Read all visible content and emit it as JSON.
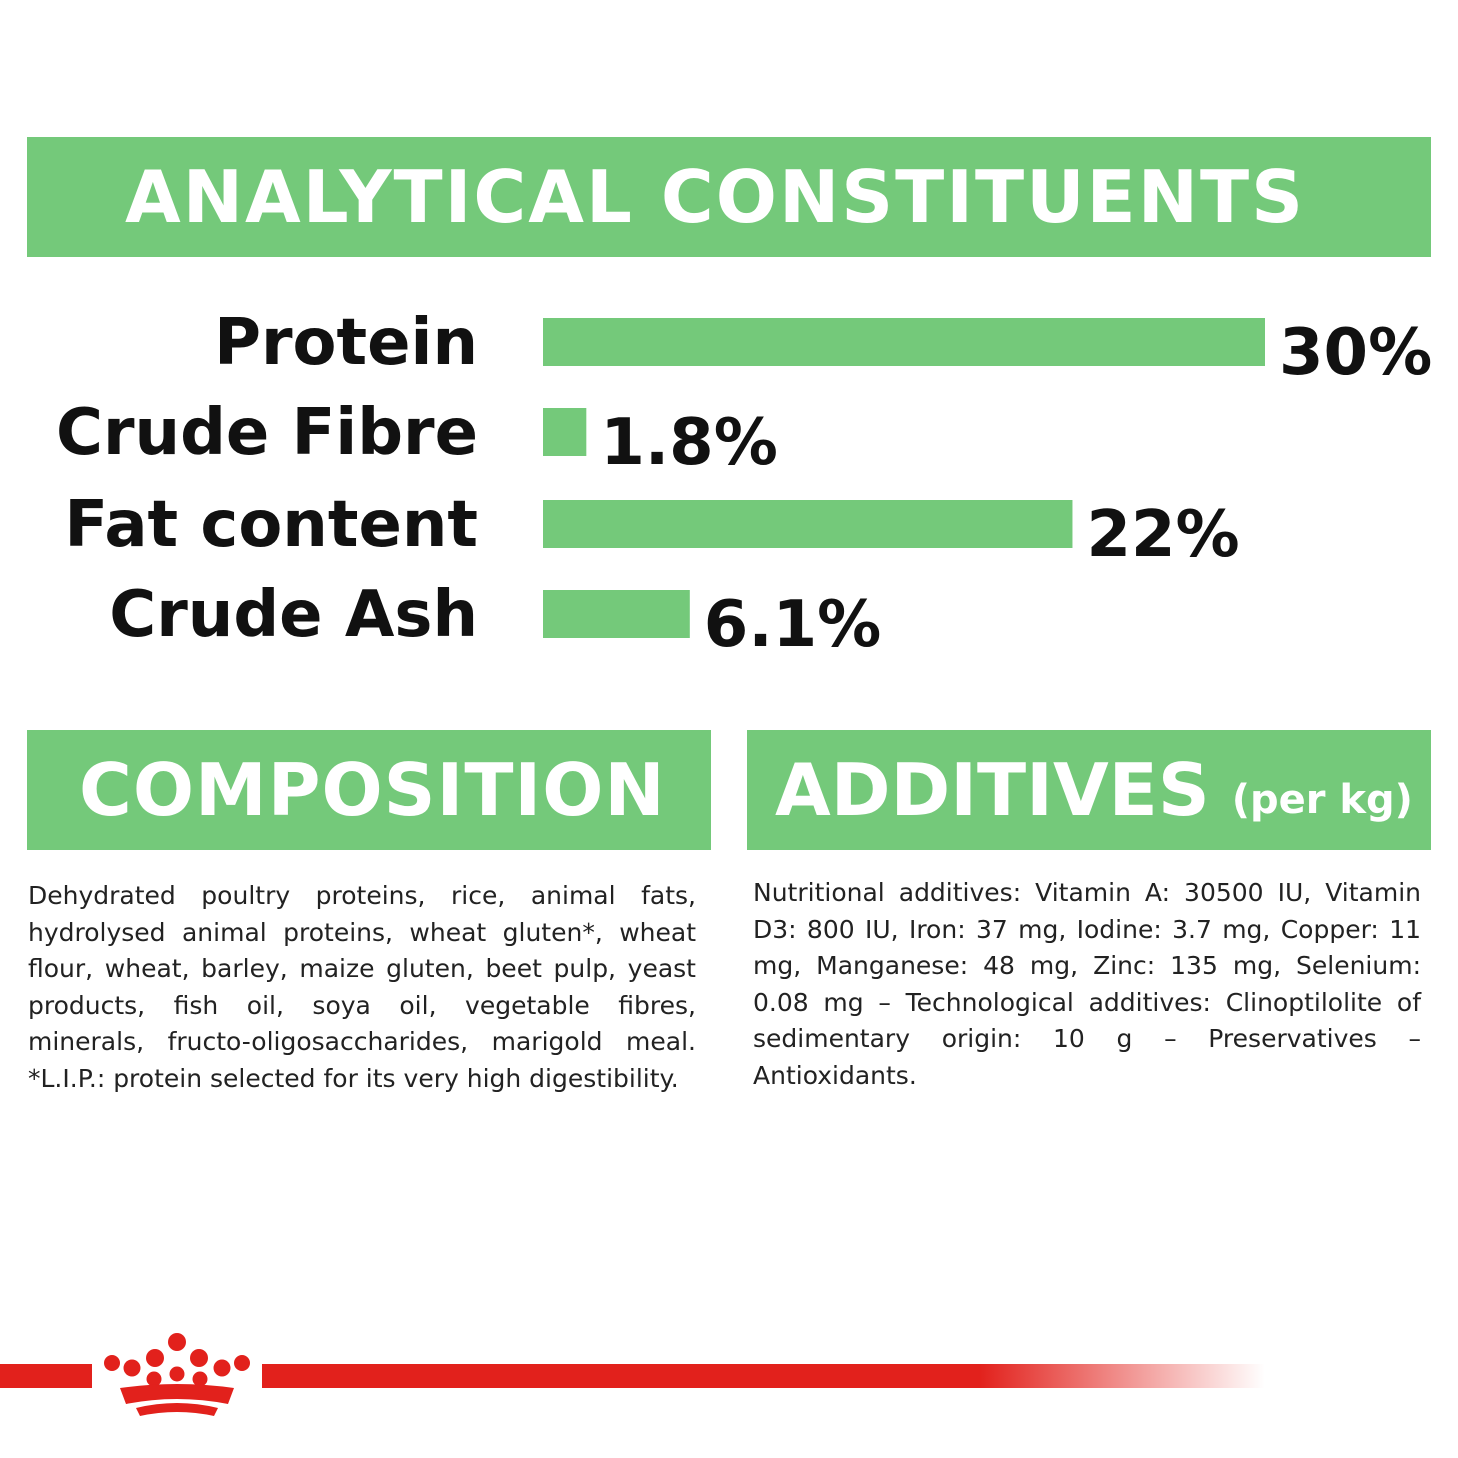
{
  "sections": {
    "analytical_title": "ANALYTICAL CONSTITUENTS",
    "composition_title": "COMPOSITION",
    "additives_title": "ADDITIVES",
    "additives_suffix": "(per kg)"
  },
  "colors": {
    "accent_green": "#74c97a",
    "brand_red": "#e2211c",
    "text": "#111111"
  },
  "chart_data": {
    "type": "bar",
    "orientation": "horizontal",
    "categories": [
      "Protein",
      "Crude Fibre",
      "Fat content",
      "Crude Ash"
    ],
    "values": [
      30,
      1.8,
      22,
      6.1
    ],
    "value_labels": [
      "30%",
      "1.8%",
      "22%",
      "6.1%"
    ],
    "unit": "%",
    "grid": false
  },
  "composition": {
    "text": "Dehydrated poultry proteins, rice, animal fats, hydrolysed animal proteins, wheat gluten*, wheat flour, wheat, barley, maize gluten, beet pulp, yeast products, fish oil, soya oil, vegetable fibres, minerals, fructo-oligosaccharides, marigold meal. *L.I.P.: protein selected for its very high digestibility."
  },
  "additives": {
    "text": "Nutritional additives: Vitamin A: 30500 IU, Vitamin D3: 800 IU, Iron: 37 mg, Iodine: 3.7 mg, Copper: 11 mg, Manganese: 48 mg, Zinc: 135 mg, Selenium: 0.08 mg – Technological additives: Clinoptilolite of sedimentary origin: 10 g – Preservatives – Antioxidants."
  },
  "logo": {
    "icon": "crown-logo-icon"
  }
}
